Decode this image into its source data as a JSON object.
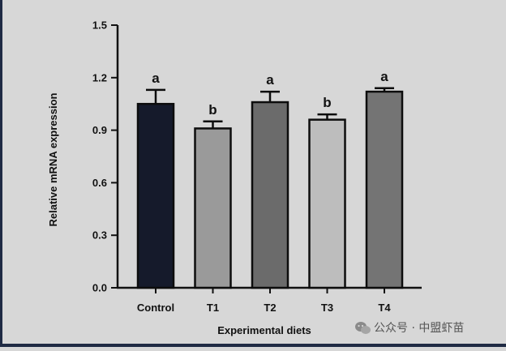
{
  "chart_data": {
    "type": "bar",
    "categories": [
      "Control",
      "T1",
      "T2",
      "T3",
      "T4"
    ],
    "values": [
      1.05,
      0.91,
      1.06,
      0.96,
      1.12
    ],
    "errors": [
      0.08,
      0.04,
      0.06,
      0.03,
      0.02
    ],
    "significance": [
      "a",
      "b",
      "a",
      "b",
      "a"
    ],
    "bar_colors": [
      "#151a2b",
      "#9a9a9a",
      "#6b6b6b",
      "#bdbdbd",
      "#747474"
    ],
    "ylim": [
      0,
      1.5
    ],
    "yticks": [
      "0.0",
      "0.3",
      "0.6",
      "0.9",
      "1.2",
      "1.5"
    ],
    "ytick_values": [
      0,
      0.3,
      0.6,
      0.9,
      1.2,
      1.5
    ],
    "xlabel": "Experimental diets",
    "ylabel": "Relative mRNA expression",
    "grid": false,
    "legend": "none"
  },
  "watermark": {
    "text": "公众号 · 中盟虾苗",
    "icon": "wechat-icon"
  },
  "colors": {
    "background": "#d7d7d7",
    "frame": "#1f2a44",
    "axis": "#111111"
  }
}
